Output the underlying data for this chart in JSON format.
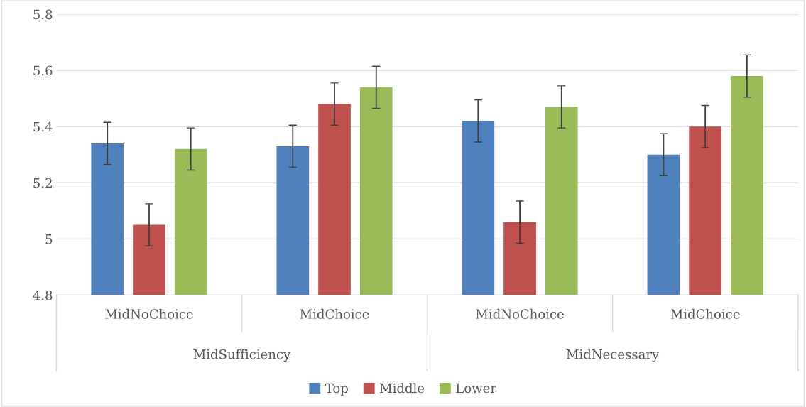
{
  "chart_data": {
    "type": "bar",
    "categories": [
      "MidNoChoice",
      "MidChoice",
      "MidNoChoice",
      "MidChoice"
    ],
    "series": [
      {
        "name": "Top",
        "color": "#4f81bd",
        "values": [
          5.34,
          5.33,
          5.42,
          5.3
        ],
        "errors": [
          0.075,
          0.075,
          0.075,
          0.075
        ]
      },
      {
        "name": "Middle",
        "color": "#c0504d",
        "values": [
          5.05,
          5.48,
          5.06,
          5.4
        ],
        "errors": [
          0.075,
          0.075,
          0.075,
          0.075
        ]
      },
      {
        "name": "Lower",
        "color": "#9bbb59",
        "values": [
          5.32,
          5.54,
          5.47,
          5.58
        ],
        "errors": [
          0.075,
          0.075,
          0.075,
          0.075
        ]
      }
    ],
    "annotations": [
      "MidSufficiency",
      "MidNecessary"
    ],
    "ylim": [
      4.8,
      5.8
    ],
    "yticks": [
      4.8,
      5,
      5.2,
      5.4,
      5.6,
      5.8
    ],
    "grid": "y",
    "legend": "bottom"
  }
}
